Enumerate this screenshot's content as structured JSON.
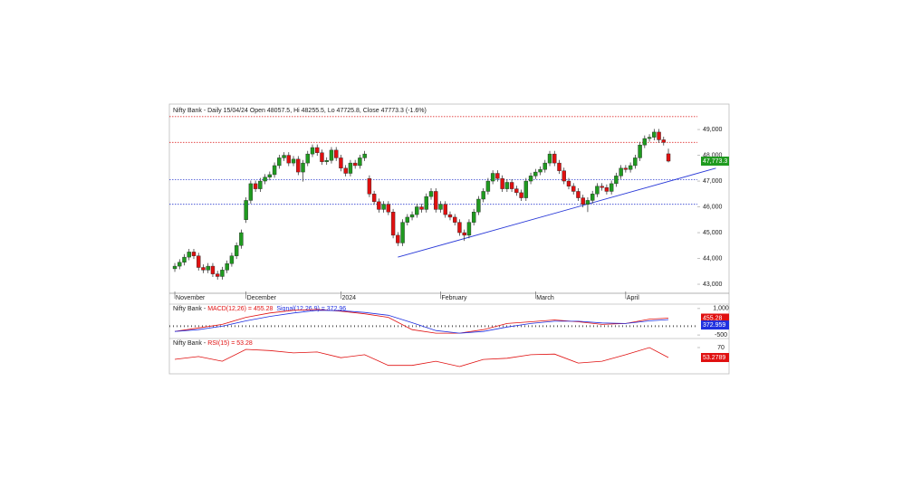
{
  "chart_data": [
    {
      "type": "candlestick",
      "title": "Nifty Bank - Daily 15/04/24 Open 48057.5, Hi 48255.5, Lo 47725.8, Close 47773.3 (-1.6%)",
      "month_labels": [
        {
          "index": 0,
          "label": "November"
        },
        {
          "index": 15,
          "label": "December"
        },
        {
          "index": 35,
          "label": "2024"
        },
        {
          "index": 56,
          "label": "February"
        },
        {
          "index": 76,
          "label": "March"
        },
        {
          "index": 95,
          "label": "April"
        }
      ],
      "open": [
        43600,
        43700,
        43850,
        44050,
        44250,
        44100,
        43650,
        43550,
        43700,
        43400,
        43300,
        43550,
        43800,
        44100,
        44500,
        45500,
        46250,
        46900,
        46700,
        47000,
        47150,
        47250,
        47600,
        47900,
        48000,
        47700,
        47850,
        47350,
        47700,
        48050,
        48300,
        48100,
        47750,
        47800,
        48200,
        47900,
        47500,
        47300,
        47700,
        47600,
        47900,
        47100,
        46500,
        46200,
        45900,
        46100,
        45800,
        44900,
        44600,
        45400,
        45600,
        45700,
        46000,
        45900,
        46400,
        46600,
        45900,
        46100,
        45700,
        45600,
        45400,
        45000,
        44900,
        45400,
        45800,
        46300,
        46600,
        47000,
        47300,
        47100,
        46700,
        46950,
        46700,
        46550,
        46350,
        47000,
        47200,
        47350,
        47450,
        47700,
        48050,
        47700,
        47400,
        47000,
        46800,
        46600,
        46350,
        46100,
        46250,
        46500,
        46800,
        46750,
        46600,
        46900,
        47200,
        47500,
        47450,
        47600,
        47900,
        48400,
        48650,
        48700,
        48900,
        48600,
        48057.5
      ],
      "high": [
        43820,
        43970,
        44170,
        44370,
        44370,
        44220,
        43770,
        43820,
        43820,
        43520,
        43670,
        43920,
        44220,
        44620,
        45120,
        46370,
        47020,
        47020,
        47120,
        47270,
        47370,
        47720,
        48020,
        48120,
        48120,
        47970,
        47970,
        47820,
        48170,
        48420,
        48420,
        48220,
        47920,
        48320,
        48320,
        48020,
        47620,
        47820,
        47820,
        48020,
        48170,
        47220,
        46620,
        46320,
        46220,
        46220,
        45920,
        45020,
        45520,
        45720,
        45820,
        46120,
        46120,
        46520,
        46720,
        46720,
        46220,
        46220,
        45820,
        45720,
        45520,
        45120,
        45520,
        45920,
        46420,
        46720,
        47120,
        47420,
        47420,
        47220,
        47070,
        47070,
        46820,
        46670,
        47120,
        47320,
        47470,
        47570,
        47820,
        48170,
        48170,
        47820,
        47520,
        47120,
        46920,
        46720,
        46470,
        46370,
        46620,
        46920,
        46920,
        46870,
        47020,
        47320,
        47620,
        47620,
        47720,
        48020,
        48520,
        48770,
        48820,
        49020,
        49020,
        48720,
        48255.5
      ],
      "low": [
        43480,
        43580,
        43730,
        43930,
        43980,
        43530,
        43430,
        43430,
        43280,
        43180,
        43180,
        43430,
        43680,
        43980,
        44380,
        45380,
        46130,
        46580,
        46580,
        46880,
        47030,
        47130,
        47480,
        47780,
        47580,
        47580,
        47230,
        46980,
        47580,
        47930,
        47980,
        47630,
        47630,
        47680,
        47780,
        47380,
        47180,
        47180,
        47480,
        47480,
        47780,
        46380,
        46080,
        45780,
        45780,
        45680,
        44780,
        44480,
        44480,
        45280,
        45480,
        45580,
        45780,
        45780,
        46280,
        45780,
        45780,
        45580,
        45480,
        45280,
        44880,
        44680,
        44780,
        45280,
        45680,
        46180,
        46480,
        46880,
        46980,
        46580,
        46580,
        46580,
        46430,
        46230,
        46230,
        46880,
        47080,
        47230,
        47330,
        47580,
        47580,
        47280,
        46880,
        46680,
        46480,
        46230,
        45980,
        45800,
        46130,
        46380,
        46630,
        46480,
        46480,
        46780,
        47080,
        47330,
        47330,
        47480,
        47780,
        48280,
        48530,
        48580,
        48480,
        48380,
        47725.8
      ],
      "close": [
        43700,
        43850,
        44050,
        44250,
        44100,
        43650,
        43550,
        43700,
        43400,
        43300,
        43550,
        43800,
        44100,
        44500,
        45000,
        46250,
        46900,
        46700,
        47000,
        47150,
        47250,
        47600,
        47900,
        48000,
        47700,
        47850,
        47350,
        47700,
        48050,
        48300,
        48100,
        47750,
        47800,
        48200,
        47900,
        47500,
        47300,
        47700,
        47600,
        47900,
        48050,
        46500,
        46200,
        45900,
        46100,
        45800,
        44900,
        44600,
        45400,
        45600,
        45700,
        46000,
        45900,
        46400,
        46600,
        45900,
        46100,
        45700,
        45600,
        45400,
        45000,
        44900,
        45400,
        45800,
        46300,
        46600,
        47000,
        47300,
        47100,
        46700,
        46950,
        46700,
        46550,
        46350,
        47000,
        47200,
        47350,
        47450,
        47700,
        48050,
        47700,
        47400,
        47000,
        46800,
        46600,
        46350,
        46100,
        46250,
        46500,
        46800,
        46750,
        46600,
        46900,
        47200,
        47500,
        47450,
        47600,
        47900,
        48400,
        48650,
        48700,
        48900,
        48600,
        48500,
        47773.3
      ],
      "up_color": "#1f9a1f",
      "down_color": "#e01010",
      "xlim": [
        -1.15,
        110.1
      ],
      "ylim": [
        42650,
        49950
      ],
      "yticks": [
        {
          "value": 43000,
          "label": "43,000"
        },
        {
          "value": 44000,
          "label": "44,000"
        },
        {
          "value": 45000,
          "label": "45,000"
        },
        {
          "value": 46000,
          "label": "46,000"
        },
        {
          "value": 47000,
          "label": "47,000"
        },
        {
          "value": 48000,
          "label": "48,000"
        },
        {
          "value": 49000,
          "label": "49,000"
        }
      ],
      "hlines": [
        {
          "value": 49500,
          "color": "#e03030"
        },
        {
          "value": 48500,
          "color": "#e03030"
        },
        {
          "value": 47050,
          "color": "#3040d0"
        },
        {
          "value": 46100,
          "color": "#3040d0"
        }
      ],
      "trendline": {
        "x": [
          47,
          114
        ],
        "y": [
          44050,
          47500
        ],
        "color": "#2a3ad8"
      },
      "last_label": {
        "value": 47773.3,
        "label": "47,773.3",
        "color": "#1f9a1f"
      }
    },
    {
      "type": "line",
      "prefix": "Nifty Bank -",
      "x": [
        0,
        5,
        10,
        15,
        20,
        25,
        30,
        35,
        40,
        45,
        50,
        55,
        60,
        65,
        70,
        75,
        80,
        85,
        90,
        95,
        100,
        104
      ],
      "series": [
        {
          "name": "MACD(12,26) = 455.28",
          "color": "#e01010",
          "values": [
            -300,
            -100,
            100,
            500,
            750,
            900,
            950,
            850,
            700,
            500,
            -200,
            -400,
            -400,
            -200,
            150,
            250,
            350,
            250,
            100,
            150,
            400,
            455.28
          ],
          "box_label": "455.28"
        },
        {
          "name": "Signal(12,26,9) = 372.96",
          "color": "#2030e0",
          "values": [
            -300,
            -200,
            0,
            300,
            550,
            750,
            900,
            880,
            780,
            620,
            200,
            -250,
            -400,
            -300,
            -50,
            150,
            280,
            280,
            180,
            150,
            300,
            372.96
          ],
          "box_label": "372.959"
        }
      ],
      "xlim": [
        -1.15,
        110.1
      ],
      "ylim": [
        -650,
        1200
      ],
      "yticks": [
        {
          "value": 1000,
          "label": "1,000"
        },
        -500
      ]
    },
    {
      "type": "line",
      "prefix": "Nifty Bank -",
      "x": [
        0,
        5,
        10,
        15,
        20,
        25,
        30,
        35,
        40,
        45,
        50,
        55,
        60,
        65,
        70,
        75,
        80,
        85,
        90,
        95,
        100,
        104
      ],
      "series": [
        {
          "name": "RSI(15) = 53.28",
          "color": "#e01010",
          "values": [
            50.3,
            55,
            47,
            67,
            65,
            61,
            62.5,
            53,
            58,
            40,
            40,
            47,
            38,
            50,
            52,
            58,
            59,
            44,
            47,
            58,
            70,
            53.28
          ],
          "box_label": "53.2789"
        }
      ],
      "xlim": [
        -1.15,
        110.1
      ],
      "ylim": [
        27.4,
        83.7
      ],
      "yticks": [
        70
      ]
    }
  ]
}
